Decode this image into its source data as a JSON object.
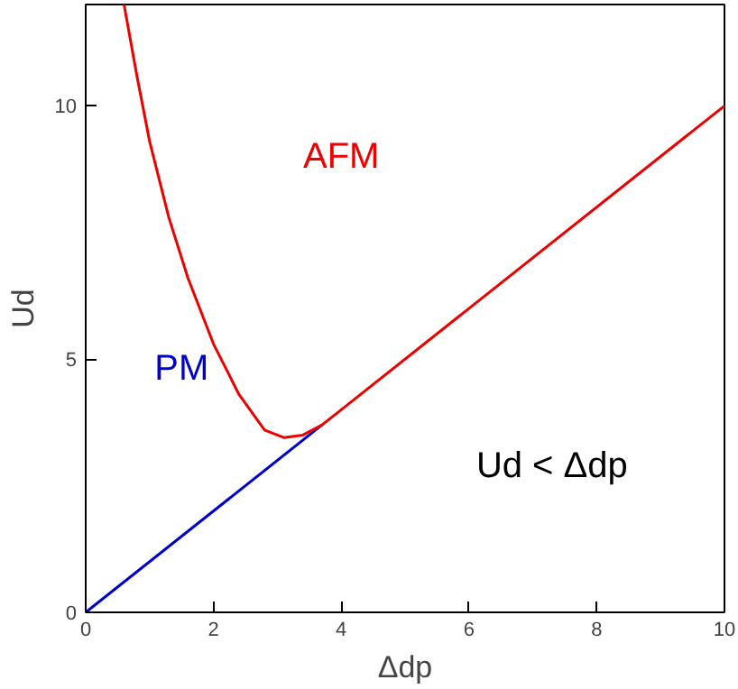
{
  "chart_data": {
    "type": "line",
    "xlabel": "Δdp",
    "ylabel": "Ud",
    "xlim": [
      0,
      10
    ],
    "ylim": [
      0,
      12
    ],
    "xticks": [
      0,
      2,
      4,
      6,
      8,
      10
    ],
    "yticks": [
      0,
      5,
      10
    ],
    "grid": false,
    "marker": "none",
    "line_style": "solid",
    "series": [
      {
        "color": "#0000cc",
        "x": [
          0,
          3.7
        ],
        "values": [
          0,
          3.7
        ]
      },
      {
        "color": "#ee0000",
        "x": [
          0.6,
          0.8,
          1.0,
          1.3,
          1.6,
          2.0,
          2.4,
          2.8,
          3.1,
          3.4,
          3.7,
          4.0,
          10
        ],
        "values": [
          12,
          10.6,
          9.3,
          7.8,
          6.6,
          5.3,
          4.3,
          3.6,
          3.45,
          3.5,
          3.7,
          4.0,
          10
        ]
      }
    ],
    "annotations": [
      "AFM",
      "PM",
      "Ud < Δdp"
    ]
  }
}
